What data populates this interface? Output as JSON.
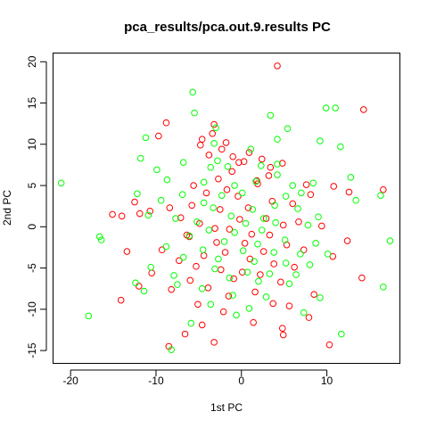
{
  "chart_data": {
    "type": "scatter",
    "title": "pca_results/pca.out.9.results PC",
    "xlabel": "1st PC",
    "ylabel": "2nd PC",
    "xlim": [
      -22.0,
      18.5
    ],
    "ylim": [
      -16.5,
      21.0
    ],
    "xticks": [
      -20,
      -10,
      0,
      10
    ],
    "yticks": [
      -15,
      -10,
      -5,
      0,
      5,
      10,
      15,
      20
    ],
    "grid": false,
    "legend": "none",
    "colors": [
      "#ff0000",
      "#00ff00"
    ],
    "series": [
      {
        "color": "#ff0000",
        "points": [
          [
            4.2,
            19.5
          ],
          [
            14.3,
            14.2
          ],
          [
            -8.8,
            12.6
          ],
          [
            -3.2,
            12.4
          ],
          [
            -3.4,
            11.3
          ],
          [
            -9.7,
            11.0
          ],
          [
            -4.6,
            10.6
          ],
          [
            -1.8,
            10.2
          ],
          [
            -2.3,
            9.4
          ],
          [
            -4.8,
            9.9
          ],
          [
            0.9,
            9.0
          ],
          [
            -1.0,
            8.5
          ],
          [
            2.4,
            8.2
          ],
          [
            -0.3,
            7.8
          ],
          [
            -3.8,
            8.7
          ],
          [
            3.4,
            7.2
          ],
          [
            4.8,
            7.7
          ],
          [
            0.3,
            7.9
          ],
          [
            -1.1,
            6.7
          ],
          [
            3.2,
            6.2
          ],
          [
            -2.7,
            5.8
          ],
          [
            1.8,
            5.6
          ],
          [
            7.6,
            5.1
          ],
          [
            1.9,
            5.2
          ],
          [
            -5.6,
            5.0
          ],
          [
            10.8,
            4.9
          ],
          [
            -4.1,
            4.1
          ],
          [
            -1.7,
            4.5
          ],
          [
            8.1,
            3.9
          ],
          [
            -0.4,
            3.7
          ],
          [
            3.6,
            3.1
          ],
          [
            6.0,
            2.8
          ],
          [
            12.6,
            4.2
          ],
          [
            16.6,
            4.5
          ],
          [
            -12.5,
            3.0
          ],
          [
            -5.8,
            2.6
          ],
          [
            -8.4,
            2.3
          ],
          [
            -2.5,
            2.1
          ],
          [
            0.8,
            2.3
          ],
          [
            -10.7,
            1.9
          ],
          [
            -11.9,
            1.6
          ],
          [
            -15.1,
            1.5
          ],
          [
            -14.0,
            1.3
          ],
          [
            -7.1,
            1.1
          ],
          [
            -0.2,
            0.9
          ],
          [
            2.9,
            1.0
          ],
          [
            6.7,
            0.6
          ],
          [
            -4.9,
            0.4
          ],
          [
            4.9,
            0.2
          ],
          [
            9.4,
            0.1
          ],
          [
            -3.1,
            -0.2
          ],
          [
            -1.4,
            -0.3
          ],
          [
            1.2,
            -0.9
          ],
          [
            -6.4,
            -1.0
          ],
          [
            3.3,
            -1.0
          ],
          [
            -6.1,
            -1.2
          ],
          [
            12.4,
            -1.7
          ],
          [
            -2.9,
            -1.9
          ],
          [
            0.4,
            -2.0
          ],
          [
            5.3,
            -2.2
          ],
          [
            -9.3,
            -2.8
          ],
          [
            7.3,
            -2.8
          ],
          [
            -1.9,
            -3.1
          ],
          [
            2.6,
            -3.0
          ],
          [
            -13.4,
            -3.0
          ],
          [
            10.7,
            -3.6
          ],
          [
            -4.4,
            -3.5
          ],
          [
            1.0,
            -3.9
          ],
          [
            -7.3,
            -4.1
          ],
          [
            3.8,
            -4.5
          ],
          [
            -5.3,
            -4.8
          ],
          [
            6.2,
            -4.9
          ],
          [
            -2.4,
            -5.2
          ],
          [
            0.1,
            -5.5
          ],
          [
            -10.5,
            -5.6
          ],
          [
            2.2,
            -5.8
          ],
          [
            14.1,
            -6.2
          ],
          [
            -0.9,
            -6.3
          ],
          [
            -6.0,
            -6.5
          ],
          [
            4.6,
            -6.7
          ],
          [
            -12.0,
            -7.2
          ],
          [
            -3.9,
            -7.4
          ],
          [
            -8.2,
            -7.6
          ],
          [
            1.6,
            -7.9
          ],
          [
            8.5,
            -8.2
          ],
          [
            -1.5,
            -8.4
          ],
          [
            -14.1,
            -8.9
          ],
          [
            3.7,
            -9.3
          ],
          [
            5.6,
            -9.6
          ],
          [
            -5.1,
            -9.4
          ],
          [
            -2.1,
            -10.3
          ],
          [
            7.9,
            -11.0
          ],
          [
            1.4,
            -11.6
          ],
          [
            -4.6,
            -11.9
          ],
          [
            4.8,
            -12.3
          ],
          [
            -6.6,
            -13.0
          ],
          [
            4.9,
            -13.1
          ],
          [
            10.3,
            -14.3
          ],
          [
            -8.5,
            -14.5
          ],
          [
            -3.2,
            -14.0
          ]
        ]
      },
      {
        "color": "#00ff00",
        "points": [
          [
            -5.7,
            16.3
          ],
          [
            -5.5,
            13.8
          ],
          [
            3.4,
            13.5
          ],
          [
            9.9,
            14.4
          ],
          [
            11.0,
            14.4
          ],
          [
            -3.0,
            12.0
          ],
          [
            5.4,
            11.9
          ],
          [
            -11.2,
            10.8
          ],
          [
            -3.2,
            10.1
          ],
          [
            4.2,
            10.6
          ],
          [
            9.2,
            10.4
          ],
          [
            1.1,
            9.4
          ],
          [
            11.6,
            9.7
          ],
          [
            -2.8,
            8.0
          ],
          [
            -6.8,
            7.8
          ],
          [
            -11.8,
            8.3
          ],
          [
            4.2,
            7.6
          ],
          [
            -9.9,
            6.9
          ],
          [
            -3.6,
            7.2
          ],
          [
            -1.6,
            7.3
          ],
          [
            2.3,
            7.4
          ],
          [
            -21.1,
            5.3
          ],
          [
            4.2,
            6.3
          ],
          [
            -8.7,
            5.7
          ],
          [
            -0.8,
            5.0
          ],
          [
            -4.4,
            5.4
          ],
          [
            1.7,
            5.5
          ],
          [
            6.0,
            5.0
          ],
          [
            8.4,
            5.3
          ],
          [
            12.8,
            6.0
          ],
          [
            -12.2,
            4.0
          ],
          [
            -6.9,
            3.9
          ],
          [
            -2.3,
            3.8
          ],
          [
            0.1,
            4.1
          ],
          [
            5.2,
            3.7
          ],
          [
            7.0,
            4.1
          ],
          [
            13.4,
            3.2
          ],
          [
            16.3,
            3.8
          ],
          [
            -9.4,
            3.2
          ],
          [
            -4.4,
            2.9
          ],
          [
            3.9,
            2.6
          ],
          [
            -3.3,
            2.3
          ],
          [
            1.3,
            2.1
          ],
          [
            6.6,
            2.2
          ],
          [
            -10.9,
            1.4
          ],
          [
            -7.7,
            1.0
          ],
          [
            -1.2,
            1.3
          ],
          [
            2.6,
            1.0
          ],
          [
            9.0,
            1.2
          ],
          [
            -5.2,
            0.6
          ],
          [
            0.5,
            0.4
          ],
          [
            4.0,
            0.5
          ],
          [
            7.8,
            0.2
          ],
          [
            -3.8,
            -0.4
          ],
          [
            -0.8,
            -0.7
          ],
          [
            2.4,
            -0.4
          ],
          [
            -6.1,
            -1.1
          ],
          [
            5.1,
            -1.6
          ],
          [
            -16.6,
            -1.2
          ],
          [
            -16.4,
            -1.6
          ],
          [
            17.4,
            -1.7
          ],
          [
            -2.0,
            -1.8
          ],
          [
            1.9,
            -2.1
          ],
          [
            8.7,
            -2.0
          ],
          [
            -8.8,
            -2.4
          ],
          [
            -4.5,
            -2.8
          ],
          [
            0.2,
            -2.9
          ],
          [
            3.8,
            -3.1
          ],
          [
            6.9,
            -3.3
          ],
          [
            10.1,
            -3.3
          ],
          [
            -6.8,
            -3.7
          ],
          [
            -2.7,
            -3.9
          ],
          [
            1.5,
            -4.2
          ],
          [
            5.2,
            -4.4
          ],
          [
            8.0,
            -4.6
          ],
          [
            -10.6,
            -4.9
          ],
          [
            -3.1,
            -5.1
          ],
          [
            0.7,
            -5.5
          ],
          [
            3.3,
            -5.7
          ],
          [
            6.4,
            -5.8
          ],
          [
            -7.9,
            -5.9
          ],
          [
            -12.4,
            -6.8
          ],
          [
            -1.4,
            -6.2
          ],
          [
            2.0,
            -6.6
          ],
          [
            5.6,
            -6.9
          ],
          [
            16.6,
            -7.3
          ],
          [
            -7.5,
            -7.0
          ],
          [
            -4.6,
            -7.5
          ],
          [
            -11.4,
            -7.8
          ],
          [
            -1.0,
            -8.3
          ],
          [
            2.9,
            -8.5
          ],
          [
            9.2,
            -8.6
          ],
          [
            -17.9,
            -10.8
          ],
          [
            -3.6,
            -9.4
          ],
          [
            0.9,
            -9.9
          ],
          [
            7.3,
            -10.4
          ],
          [
            -0.6,
            -10.7
          ],
          [
            -5.9,
            -11.7
          ],
          [
            11.7,
            -13.0
          ],
          [
            -8.2,
            -14.9
          ]
        ]
      }
    ]
  }
}
